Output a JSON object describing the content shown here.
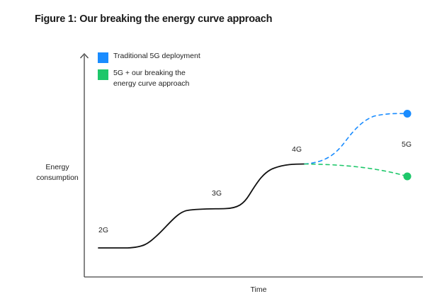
{
  "title": "Figure 1: Our breaking the energy curve approach",
  "legend": [
    {
      "label": "Traditional 5G deployment",
      "color": "#1a8cff"
    },
    {
      "label": "5G + our breaking the\nenergy curve approach",
      "color": "#1ec76a"
    }
  ],
  "axes": {
    "y_label": "Energy\nconsumption",
    "x_label": "Time"
  },
  "generations": {
    "g2": "2G",
    "g3": "3G",
    "g4": "4G",
    "g5": "5G"
  },
  "colors": {
    "curve": "#111111",
    "axis": "#444444",
    "traditional": "#1a8cff",
    "breaking": "#1ec76a"
  }
}
